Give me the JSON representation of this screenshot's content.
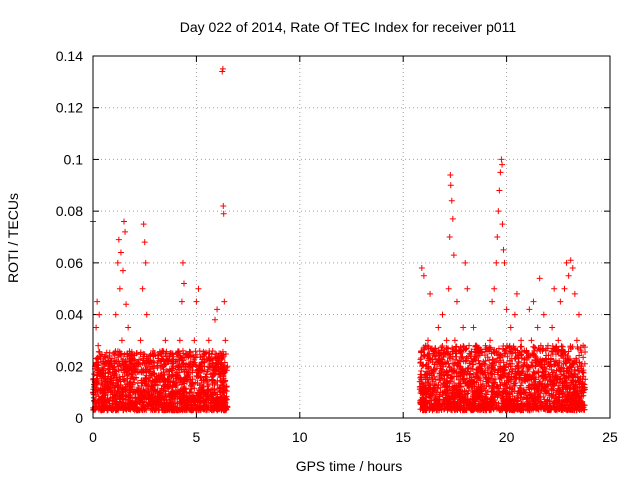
{
  "chart_data": {
    "type": "scatter",
    "title": "Day 022 of 2014, Rate Of TEC Index for receiver p011",
    "xlabel": "GPS time / hours",
    "ylabel": "ROTI / TECUs",
    "xlim": [
      0,
      25
    ],
    "ylim": [
      0,
      0.14
    ],
    "x_ticks": [
      0,
      5,
      10,
      15,
      20,
      25
    ],
    "x_tick_labels": [
      "0",
      "5",
      "10",
      "15",
      "20",
      "25"
    ],
    "y_ticks": [
      0,
      0.02,
      0.04,
      0.06,
      0.08,
      0.1,
      0.12,
      0.14
    ],
    "y_tick_labels": [
      "0",
      "0.02",
      "0.04",
      "0.06",
      "0.08",
      "0.1",
      "0.12",
      "0.14"
    ],
    "grid": true,
    "marker": "+",
    "marker_color": "#ff0000",
    "series": [
      {
        "name": "ROTI",
        "points": [
          {
            "x": 0.0,
            "y": 0.076
          },
          {
            "x": 0.05,
            "y": 0.013
          },
          {
            "x": 0.1,
            "y": 0.02
          },
          {
            "x": 0.15,
            "y": 0.035
          },
          {
            "x": 0.2,
            "y": 0.045
          },
          {
            "x": 0.25,
            "y": 0.028
          },
          {
            "x": 0.3,
            "y": 0.04
          },
          {
            "x": 0.35,
            "y": 0.01
          },
          {
            "x": 0.4,
            "y": 0.018
          },
          {
            "x": 0.5,
            "y": 0.008
          },
          {
            "x": 0.6,
            "y": 0.015
          },
          {
            "x": 0.7,
            "y": 0.012
          },
          {
            "x": 0.8,
            "y": 0.02
          },
          {
            "x": 0.9,
            "y": 0.01
          },
          {
            "x": 1.0,
            "y": 0.025
          },
          {
            "x": 1.1,
            "y": 0.04
          },
          {
            "x": 1.2,
            "y": 0.06
          },
          {
            "x": 1.25,
            "y": 0.069
          },
          {
            "x": 1.3,
            "y": 0.05
          },
          {
            "x": 1.35,
            "y": 0.064
          },
          {
            "x": 1.4,
            "y": 0.03
          },
          {
            "x": 1.45,
            "y": 0.057
          },
          {
            "x": 1.5,
            "y": 0.076
          },
          {
            "x": 1.55,
            "y": 0.072
          },
          {
            "x": 1.6,
            "y": 0.044
          },
          {
            "x": 1.7,
            "y": 0.035
          },
          {
            "x": 1.8,
            "y": 0.02
          },
          {
            "x": 1.9,
            "y": 0.012
          },
          {
            "x": 2.0,
            "y": 0.015
          },
          {
            "x": 2.1,
            "y": 0.025
          },
          {
            "x": 2.2,
            "y": 0.01
          },
          {
            "x": 2.3,
            "y": 0.03
          },
          {
            "x": 2.4,
            "y": 0.05
          },
          {
            "x": 2.45,
            "y": 0.075
          },
          {
            "x": 2.5,
            "y": 0.068
          },
          {
            "x": 2.55,
            "y": 0.06
          },
          {
            "x": 2.6,
            "y": 0.04
          },
          {
            "x": 2.7,
            "y": 0.022
          },
          {
            "x": 2.8,
            "y": 0.012
          },
          {
            "x": 2.9,
            "y": 0.008
          },
          {
            "x": 3.0,
            "y": 0.015
          },
          {
            "x": 3.1,
            "y": 0.02
          },
          {
            "x": 3.2,
            "y": 0.01
          },
          {
            "x": 3.3,
            "y": 0.025
          },
          {
            "x": 3.4,
            "y": 0.004
          },
          {
            "x": 3.5,
            "y": 0.03
          },
          {
            "x": 3.6,
            "y": 0.015
          },
          {
            "x": 3.7,
            "y": 0.018
          },
          {
            "x": 3.8,
            "y": 0.01
          },
          {
            "x": 3.9,
            "y": 0.022
          },
          {
            "x": 4.0,
            "y": 0.012
          },
          {
            "x": 4.1,
            "y": 0.02
          },
          {
            "x": 4.2,
            "y": 0.03
          },
          {
            "x": 4.3,
            "y": 0.045
          },
          {
            "x": 4.35,
            "y": 0.06
          },
          {
            "x": 4.4,
            "y": 0.052
          },
          {
            "x": 4.5,
            "y": 0.025
          },
          {
            "x": 4.6,
            "y": 0.015
          },
          {
            "x": 4.7,
            "y": 0.01
          },
          {
            "x": 4.8,
            "y": 0.02
          },
          {
            "x": 4.9,
            "y": 0.03
          },
          {
            "x": 5.0,
            "y": 0.045
          },
          {
            "x": 5.1,
            "y": 0.05
          },
          {
            "x": 5.2,
            "y": 0.02
          },
          {
            "x": 5.3,
            "y": 0.012
          },
          {
            "x": 5.4,
            "y": 0.025
          },
          {
            "x": 5.5,
            "y": 0.015
          },
          {
            "x": 5.6,
            "y": 0.03
          },
          {
            "x": 5.7,
            "y": 0.01
          },
          {
            "x": 5.8,
            "y": 0.02
          },
          {
            "x": 5.9,
            "y": 0.038
          },
          {
            "x": 6.0,
            "y": 0.042
          },
          {
            "x": 6.1,
            "y": 0.025
          },
          {
            "x": 6.2,
            "y": 0.018
          },
          {
            "x": 6.25,
            "y": 0.134
          },
          {
            "x": 6.28,
            "y": 0.135
          },
          {
            "x": 6.3,
            "y": 0.082
          },
          {
            "x": 6.32,
            "y": 0.079
          },
          {
            "x": 6.35,
            "y": 0.045
          },
          {
            "x": 6.4,
            "y": 0.03
          },
          {
            "x": 6.45,
            "y": 0.012
          },
          {
            "x": 6.5,
            "y": 0.02
          },
          {
            "x": 15.8,
            "y": 0.012
          },
          {
            "x": 15.9,
            "y": 0.058
          },
          {
            "x": 16.0,
            "y": 0.055
          },
          {
            "x": 16.1,
            "y": 0.02
          },
          {
            "x": 16.2,
            "y": 0.03
          },
          {
            "x": 16.3,
            "y": 0.048
          },
          {
            "x": 16.4,
            "y": 0.015
          },
          {
            "x": 16.5,
            "y": 0.025
          },
          {
            "x": 16.6,
            "y": 0.01
          },
          {
            "x": 16.7,
            "y": 0.035
          },
          {
            "x": 16.8,
            "y": 0.02
          },
          {
            "x": 16.9,
            "y": 0.04
          },
          {
            "x": 17.0,
            "y": 0.015
          },
          {
            "x": 17.1,
            "y": 0.03
          },
          {
            "x": 17.2,
            "y": 0.05
          },
          {
            "x": 17.25,
            "y": 0.07
          },
          {
            "x": 17.28,
            "y": 0.094
          },
          {
            "x": 17.3,
            "y": 0.09
          },
          {
            "x": 17.35,
            "y": 0.084
          },
          {
            "x": 17.4,
            "y": 0.077
          },
          {
            "x": 17.45,
            "y": 0.063
          },
          {
            "x": 17.5,
            "y": 0.03
          },
          {
            "x": 17.6,
            "y": 0.045
          },
          {
            "x": 17.7,
            "y": 0.02
          },
          {
            "x": 17.8,
            "y": 0.012
          },
          {
            "x": 17.9,
            "y": 0.035
          },
          {
            "x": 18.0,
            "y": 0.06
          },
          {
            "x": 18.1,
            "y": 0.05
          },
          {
            "x": 18.2,
            "y": 0.025
          },
          {
            "x": 18.3,
            "y": 0.015
          },
          {
            "x": 18.4,
            "y": 0.035
          },
          {
            "x": 18.5,
            "y": 0.028
          },
          {
            "x": 18.6,
            "y": 0.01
          },
          {
            "x": 18.7,
            "y": 0.02
          },
          {
            "x": 18.8,
            "y": 0.012
          },
          {
            "x": 18.9,
            "y": 0.008
          },
          {
            "x": 19.0,
            "y": 0.005
          },
          {
            "x": 19.1,
            "y": 0.015
          },
          {
            "x": 19.2,
            "y": 0.03
          },
          {
            "x": 19.3,
            "y": 0.045
          },
          {
            "x": 19.4,
            "y": 0.05
          },
          {
            "x": 19.5,
            "y": 0.06
          },
          {
            "x": 19.55,
            "y": 0.07
          },
          {
            "x": 19.6,
            "y": 0.08
          },
          {
            "x": 19.65,
            "y": 0.088
          },
          {
            "x": 19.7,
            "y": 0.095
          },
          {
            "x": 19.75,
            "y": 0.1
          },
          {
            "x": 19.78,
            "y": 0.098
          },
          {
            "x": 19.8,
            "y": 0.075
          },
          {
            "x": 19.85,
            "y": 0.065
          },
          {
            "x": 19.9,
            "y": 0.06
          },
          {
            "x": 20.0,
            "y": 0.042
          },
          {
            "x": 20.1,
            "y": 0.02
          },
          {
            "x": 20.2,
            "y": 0.035
          },
          {
            "x": 20.3,
            "y": 0.025
          },
          {
            "x": 20.4,
            "y": 0.04
          },
          {
            "x": 20.5,
            "y": 0.048
          },
          {
            "x": 20.6,
            "y": 0.015
          },
          {
            "x": 20.7,
            "y": 0.03
          },
          {
            "x": 20.8,
            "y": 0.02
          },
          {
            "x": 20.9,
            "y": 0.01
          },
          {
            "x": 21.0,
            "y": 0.025
          },
          {
            "x": 21.1,
            "y": 0.042
          },
          {
            "x": 21.2,
            "y": 0.03
          },
          {
            "x": 21.3,
            "y": 0.045
          },
          {
            "x": 21.4,
            "y": 0.015
          },
          {
            "x": 21.5,
            "y": 0.035
          },
          {
            "x": 21.6,
            "y": 0.054
          },
          {
            "x": 21.7,
            "y": 0.022
          },
          {
            "x": 21.8,
            "y": 0.04
          },
          {
            "x": 21.9,
            "y": 0.012
          },
          {
            "x": 22.0,
            "y": 0.028
          },
          {
            "x": 22.1,
            "y": 0.02
          },
          {
            "x": 22.2,
            "y": 0.035
          },
          {
            "x": 22.3,
            "y": 0.05
          },
          {
            "x": 22.4,
            "y": 0.015
          },
          {
            "x": 22.5,
            "y": 0.03
          },
          {
            "x": 22.6,
            "y": 0.045
          },
          {
            "x": 22.7,
            "y": 0.025
          },
          {
            "x": 22.8,
            "y": 0.05
          },
          {
            "x": 22.9,
            "y": 0.06
          },
          {
            "x": 23.0,
            "y": 0.055
          },
          {
            "x": 23.1,
            "y": 0.061
          },
          {
            "x": 23.2,
            "y": 0.058
          },
          {
            "x": 23.3,
            "y": 0.048
          },
          {
            "x": 23.4,
            "y": 0.03
          },
          {
            "x": 23.5,
            "y": 0.04
          },
          {
            "x": 23.6,
            "y": 0.02
          },
          {
            "x": 23.7,
            "y": 0.028
          },
          {
            "x": 23.8,
            "y": 0.015
          }
        ],
        "dense_bands": [
          {
            "x_start": 0.0,
            "x_end": 6.5,
            "y_low": 0.003,
            "y_high": 0.026
          },
          {
            "x_start": 15.8,
            "x_end": 23.8,
            "y_low": 0.003,
            "y_high": 0.028
          }
        ]
      }
    ]
  }
}
